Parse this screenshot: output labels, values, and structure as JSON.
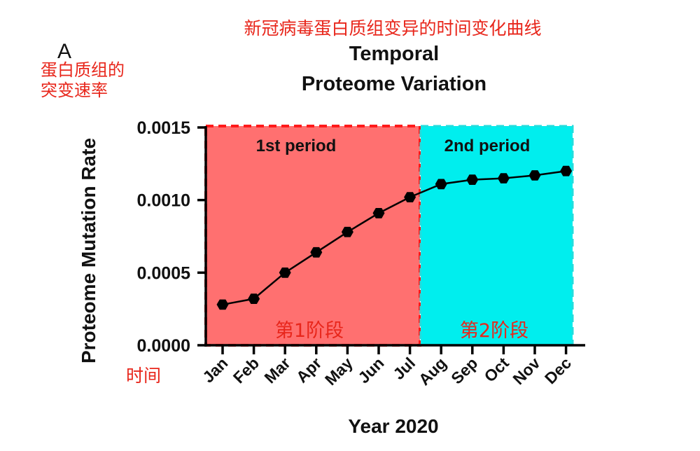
{
  "panel_letter": "A",
  "annotations": {
    "title_cn": "新冠病毒蛋白质组变异的时间变化曲线",
    "ylabel_cn_line1": "蛋白质组的",
    "ylabel_cn_line2": "突变速率",
    "xlabel_cn": "时间",
    "period1_cn": "第1阶段",
    "period2_cn": "第2阶段"
  },
  "colors": {
    "period1_fill": "#ff7070",
    "period1_border": "#ff1a1a",
    "period2_fill": "#00eeee",
    "period2_border": "#22dddd",
    "line": "#000000",
    "annotation": "#e8261b"
  },
  "chart_data": {
    "type": "line",
    "title_line1": "Temporal",
    "title_line2": "Proteome Variation",
    "xlabel": "Year 2020",
    "ylabel": "Proteome Mutation Rate",
    "categories": [
      "Jan",
      "Feb",
      "Mar",
      "Apr",
      "May",
      "Jun",
      "Jul",
      "Aug",
      "Sep",
      "Oct",
      "Nov",
      "Dec"
    ],
    "series": [
      {
        "values": [
          0.00028,
          0.00032,
          0.0005,
          0.00064,
          0.00078,
          0.00091,
          0.00102,
          0.00111,
          0.00114,
          0.00115,
          0.00117,
          0.0012
        ]
      }
    ],
    "ylim": [
      0,
      0.0015
    ],
    "yticks": [
      "0.0000",
      "0.0005",
      "0.0010",
      "0.0015"
    ],
    "ytick_values": [
      0,
      0.0005,
      0.001,
      0.0015
    ],
    "periods": [
      {
        "label": "1st period",
        "from": "Jan",
        "to": "Jul"
      },
      {
        "label": "2nd period",
        "from": "Aug",
        "to": "Dec"
      }
    ]
  }
}
